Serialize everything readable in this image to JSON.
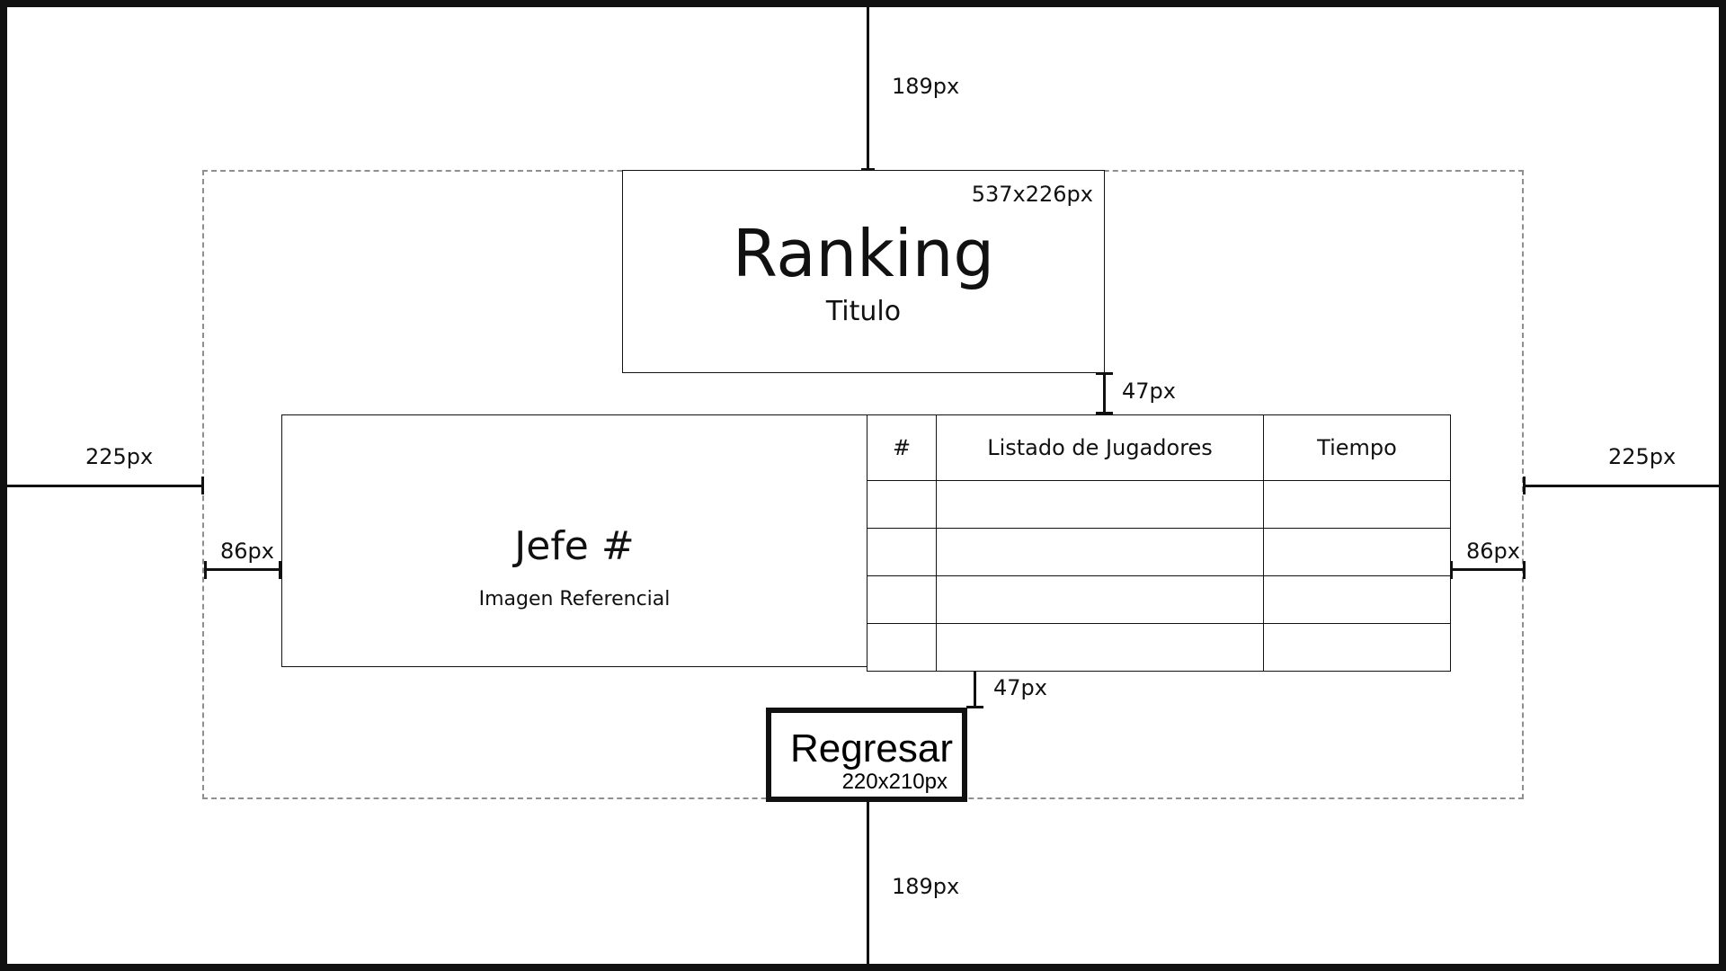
{
  "diagram": {
    "dimensions": {
      "top_margin": "189px",
      "bottom_margin": "189px",
      "left_margin": "225px",
      "right_margin": "225px",
      "left_inner_gap": "86px",
      "right_inner_gap": "86px",
      "title_gap": "47px",
      "button_gap": "47px"
    },
    "title_box": {
      "size": "537x226px",
      "heading": "Ranking",
      "subheading": "Titulo"
    },
    "boss_panel": {
      "title": "Jefe #",
      "subtitle": "Imagen Referencial"
    },
    "table": {
      "headers": [
        "#",
        "Listado de Jugadores",
        "Tiempo"
      ]
    },
    "button": {
      "label": "Regresar",
      "size": "220x210px"
    }
  }
}
